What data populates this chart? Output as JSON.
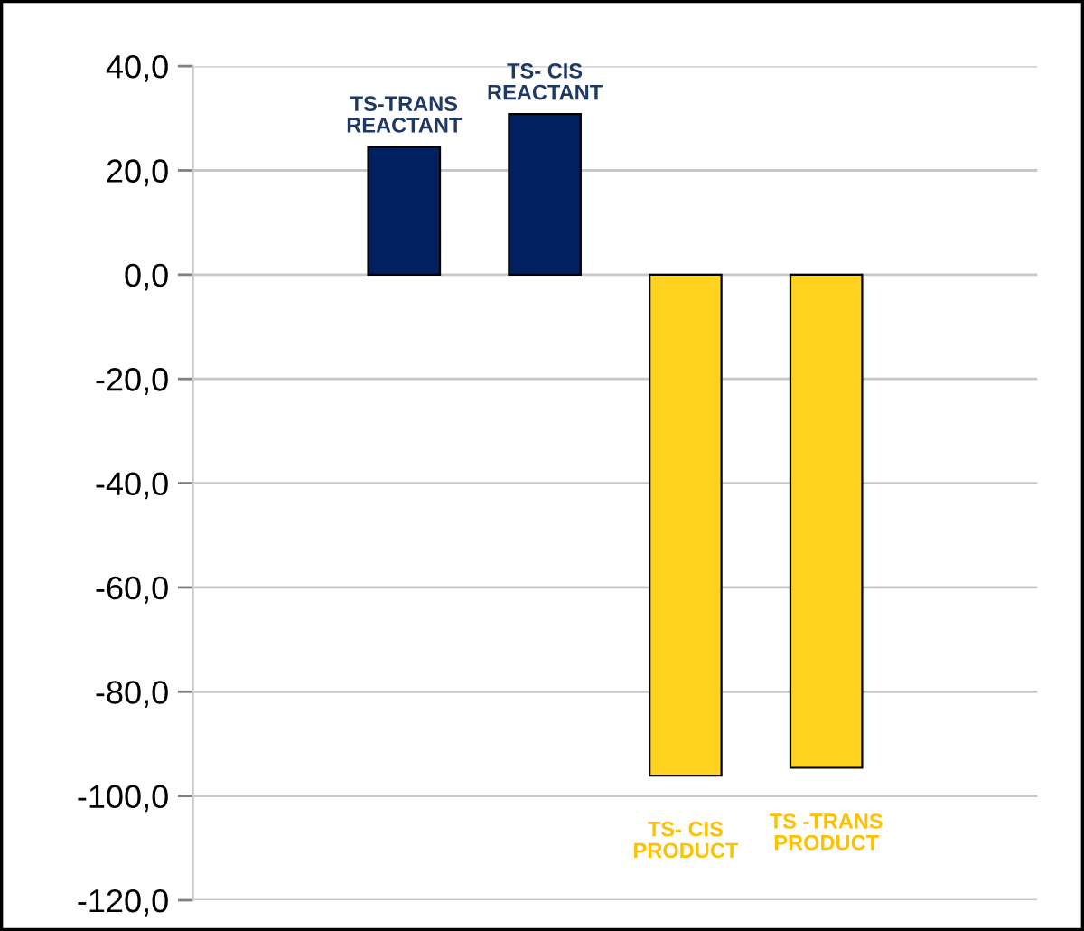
{
  "chart_data": {
    "type": "bar",
    "categories": [
      null,
      "TS-TRANS\nREACTANT",
      "TS- CIS\nREACTANT",
      "TS- CIS\nPRODUCT",
      "TS -TRANS\nPRODUCT",
      null
    ],
    "values": [
      null,
      24.5,
      30.8,
      -96.1,
      -94.6,
      null
    ],
    "colors": [
      "#002060",
      "#002060",
      "#002060",
      "#ffd320",
      "#ffd320",
      "#ffd320"
    ],
    "ylim": [
      -120,
      40
    ],
    "yticks": [
      {
        "value": -120,
        "label": "-120,0"
      },
      {
        "value": -100,
        "label": "-100,0"
      },
      {
        "value": -80,
        "label": "-80,0"
      },
      {
        "value": -60,
        "label": "-60,0"
      },
      {
        "value": -40,
        "label": "-40,0"
      },
      {
        "value": -20,
        "label": "-20,0"
      },
      {
        "value": 0,
        "label": "0,0"
      },
      {
        "value": 20,
        "label": "20,0"
      },
      {
        "value": 40,
        "label": "40,0"
      }
    ],
    "grid": "y",
    "tick_labels": "y",
    "legend": false
  }
}
